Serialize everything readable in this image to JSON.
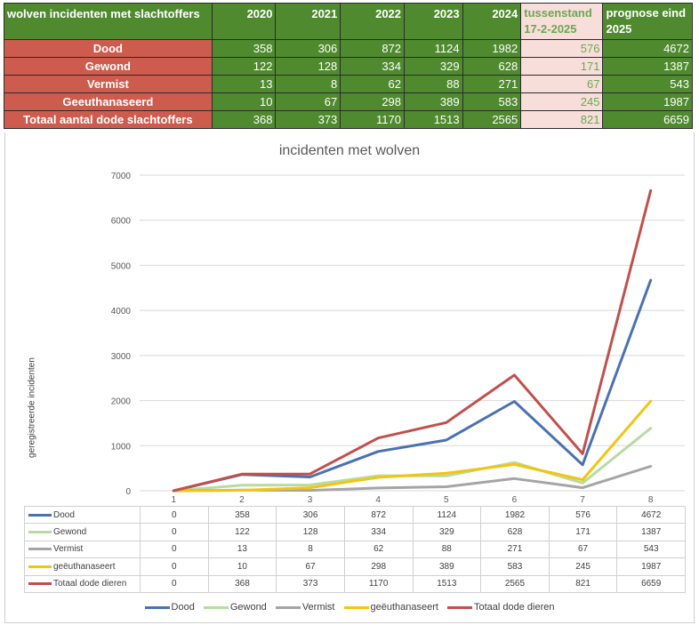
{
  "table": {
    "title": "wolven incidenten met  slachtoffers",
    "years": [
      "2020",
      "2021",
      "2022",
      "2023",
      "2024"
    ],
    "tussenstand": "tussenstand 17-2-2025",
    "prognose": "prognose eind 2025",
    "rows": [
      {
        "label": "Dood",
        "values": [
          "358",
          "306",
          "872",
          "1124",
          "1982"
        ],
        "tussen": "576",
        "prognose": "4672"
      },
      {
        "label": "Gewond",
        "values": [
          "122",
          "128",
          "334",
          "329",
          "628"
        ],
        "tussen": "171",
        "prognose": "1387"
      },
      {
        "label": "Vermist",
        "values": [
          "13",
          "8",
          "62",
          "88",
          "271"
        ],
        "tussen": "67",
        "prognose": "543"
      },
      {
        "label": "Geeuthanaseerd",
        "values": [
          "10",
          "67",
          "298",
          "389",
          "583"
        ],
        "tussen": "245",
        "prognose": "1987"
      },
      {
        "label": "Totaal aantal dode slachtoffers",
        "values": [
          "368",
          "373",
          "1170",
          "1513",
          "2565"
        ],
        "tussen": "821",
        "prognose": "6659"
      }
    ]
  },
  "chart_data": {
    "type": "line",
    "title": "incidenten met wolven",
    "xlabel": "",
    "ylabel": "geregistreerde incidenten",
    "ylim": [
      0,
      7000
    ],
    "yticks": [
      "0",
      "1000",
      "2000",
      "3000",
      "4000",
      "5000",
      "6000",
      "7000"
    ],
    "categories": [
      "1",
      "2",
      "3",
      "4",
      "5",
      "6",
      "7",
      "8"
    ],
    "grid": true,
    "legend_position": "bottom",
    "data_table": true,
    "series": [
      {
        "name": "Dood",
        "color": "#4a72b0",
        "values": [
          0,
          358,
          306,
          872,
          1124,
          1982,
          576,
          4672
        ]
      },
      {
        "name": "Gewond",
        "color": "#b8dba2",
        "values": [
          0,
          122,
          128,
          334,
          329,
          628,
          171,
          1387
        ]
      },
      {
        "name": "Vermist",
        "color": "#a5a5a5",
        "values": [
          0,
          13,
          8,
          62,
          88,
          271,
          67,
          543
        ]
      },
      {
        "name": "geëuthanaseert",
        "color": "#f2c511",
        "values": [
          0,
          10,
          67,
          298,
          389,
          583,
          245,
          1987
        ]
      },
      {
        "name": "Totaal dode dieren",
        "color": "#c0504d",
        "values": [
          0,
          368,
          373,
          1170,
          1513,
          2565,
          821,
          6659
        ]
      }
    ]
  }
}
